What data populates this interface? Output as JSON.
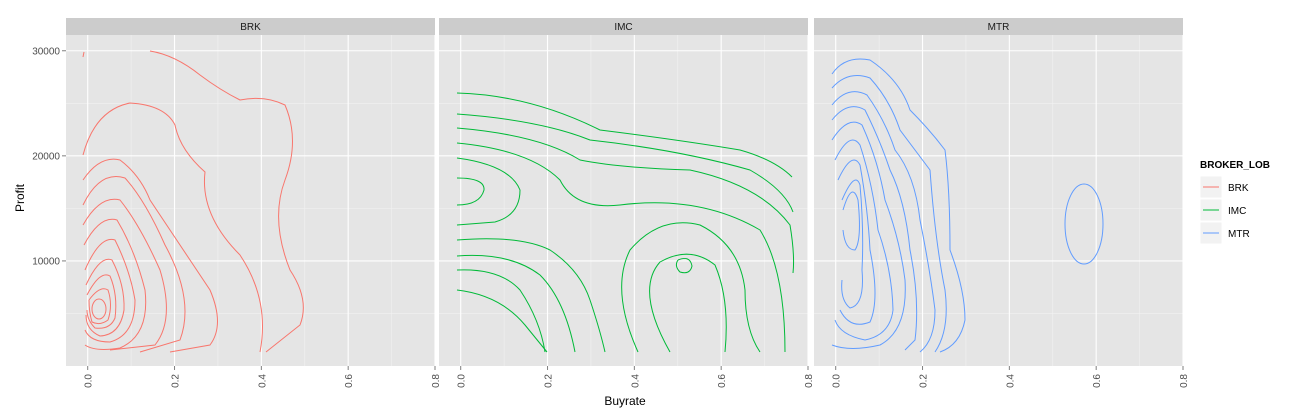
{
  "chart_data": {
    "type": "line",
    "subtype": "2d-density-contour, faceted",
    "xlabel": "Buyrate",
    "ylabel": "Profit",
    "xlim": [
      -0.05,
      0.8
    ],
    "ylim": [
      0,
      31500
    ],
    "x_ticks": [
      "0.0",
      "0.2",
      "0.4",
      "0.6",
      "0.8"
    ],
    "x_tick_values": [
      0,
      0.2,
      0.4,
      0.6,
      0.8
    ],
    "y_ticks": [
      "10000",
      "20000",
      "30000"
    ],
    "y_tick_values": [
      10000,
      20000,
      30000
    ],
    "grid": true,
    "legend": {
      "title": "BROKER_LOB",
      "position": "right",
      "entries": [
        {
          "label": "BRK",
          "color": "#F8766D"
        },
        {
          "label": "IMC",
          "color": "#00BA38"
        },
        {
          "label": "MTR",
          "color": "#619CFF"
        }
      ]
    },
    "facets": [
      {
        "label": "BRK",
        "color": "#F8766D"
      },
      {
        "label": "IMC",
        "color": "#00BA38"
      },
      {
        "label": "MTR",
        "color": "#619CFF"
      }
    ]
  },
  "colors": {
    "panel_bg": "#E5E5E5",
    "strip_bg": "#CCCCCC",
    "grid": "#FFFFFF"
  }
}
